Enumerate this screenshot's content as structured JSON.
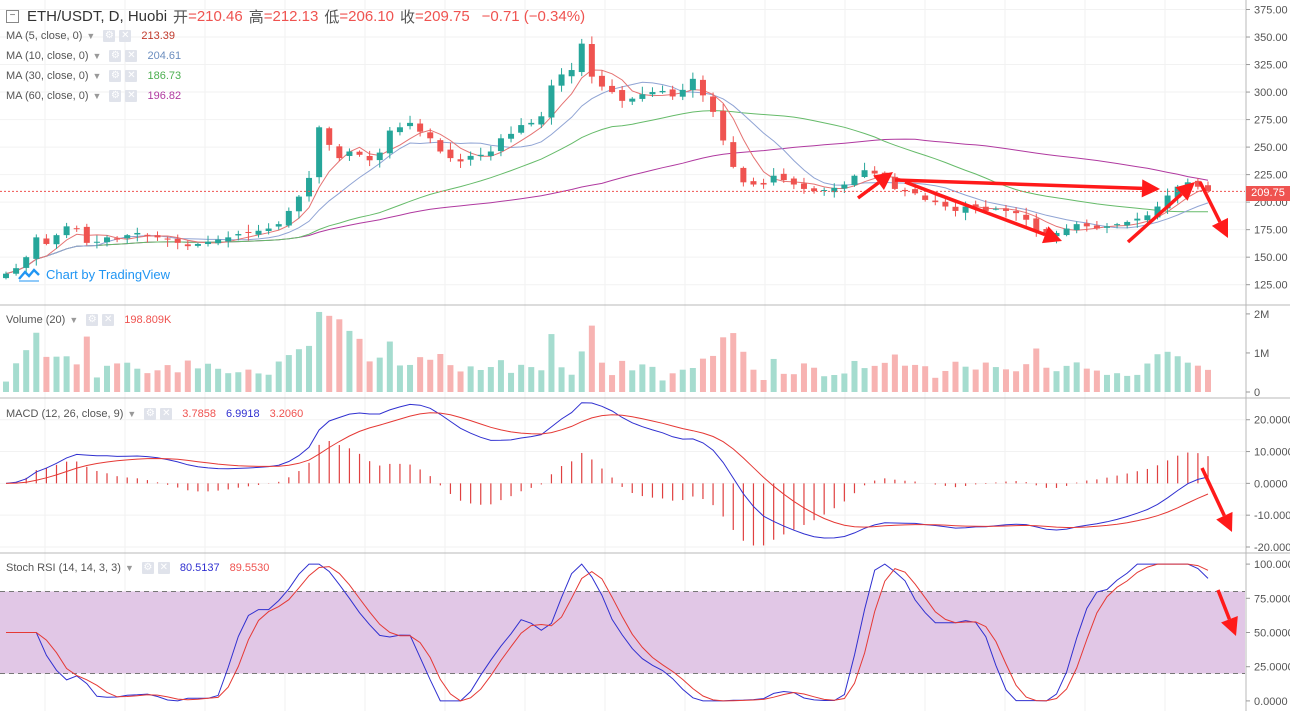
{
  "header": {
    "symbol": "ETH/USDT, D, Huobi",
    "open_label": "开",
    "open": "=210.46",
    "high_label": "高",
    "high": "=212.13",
    "low_label": "低",
    "low": "=206.10",
    "close_label": "收",
    "close": "=209.75",
    "change": "−0.71 (−0.34%)"
  },
  "ma_legend": [
    {
      "name": "MA (5, close, 0)",
      "value": "213.39",
      "color": "#c0392b"
    },
    {
      "name": "MA (10, close, 0)",
      "value": "204.61",
      "color": "#6c8ebf"
    },
    {
      "name": "MA (30, close, 0)",
      "value": "186.73",
      "color": "#4caf50"
    },
    {
      "name": "MA (60, close, 0)",
      "value": "196.82",
      "color": "#b03aa0"
    }
  ],
  "watermark": "Chart by TradingView",
  "last_price_tag": "209.75",
  "volume_legend": {
    "name": "Volume (20)",
    "value": "198.809K"
  },
  "macd_legend": {
    "name": "MACD (12, 26, close, 9)",
    "v1": "3.7858",
    "v2": "6.9918",
    "v3": "3.2060"
  },
  "stoch_legend": {
    "name": "Stoch RSI (14, 14, 3, 3)",
    "v1": "80.5137",
    "v2": "89.5530"
  },
  "colors": {
    "up": "#26a69a",
    "down": "#ef5350",
    "vol_up": "#a5dccf",
    "vol_down": "#f7b3b2",
    "annot": "#ff1a1a",
    "band": "#e1c7e6"
  },
  "chart_data": [
    {
      "type": "candlestick",
      "panel": "price",
      "axis_ticks": [
        "375.00",
        "350.00",
        "325.00",
        "300.00",
        "275.00",
        "250.00",
        "225.00",
        "200.00",
        "175.00",
        "150.00",
        "125.00"
      ],
      "ylim": [
        112,
        380
      ],
      "close": [
        135,
        140,
        150,
        168,
        162,
        170,
        178,
        176,
        163,
        164,
        168,
        166,
        170,
        172,
        170,
        168,
        166,
        163,
        160,
        162,
        164,
        166,
        168,
        171,
        172,
        174,
        176,
        180,
        192,
        205,
        222,
        268,
        252,
        240,
        246,
        243,
        238,
        245,
        265,
        268,
        272,
        264,
        258,
        246,
        240,
        237,
        242,
        243,
        246,
        258,
        262,
        270,
        272,
        278,
        306,
        316,
        320,
        344,
        314,
        305,
        300,
        292,
        294,
        298,
        300,
        301,
        296,
        302,
        312,
        297,
        282,
        256,
        232,
        218,
        216,
        216,
        224,
        220,
        216,
        212,
        210,
        211,
        213,
        216,
        224,
        229,
        226,
        222,
        212,
        210,
        208,
        202,
        200,
        196,
        192,
        196,
        196,
        192,
        194,
        192,
        190,
        184,
        174,
        170,
        172,
        176,
        180,
        178,
        176,
        178,
        180,
        182,
        185,
        188,
        196,
        206,
        214,
        218,
        214,
        210
      ],
      "annotation_arrows": 6
    },
    {
      "type": "bar",
      "panel": "volume",
      "axis_ticks": [
        "2M",
        "1M",
        "0"
      ]
    },
    {
      "type": "line",
      "panel": "macd",
      "axis_ticks": [
        "20.0000",
        "10.0000",
        "0.0000",
        "-10.0000",
        "-20.0000"
      ],
      "ylim": [
        -20,
        24
      ]
    },
    {
      "type": "line",
      "panel": "stoch_rsi",
      "axis_ticks": [
        "100.0000",
        "75.0000",
        "50.0000",
        "25.0000",
        "0.0000"
      ],
      "ylim": [
        -3,
        103
      ],
      "band": [
        20,
        80
      ]
    }
  ]
}
